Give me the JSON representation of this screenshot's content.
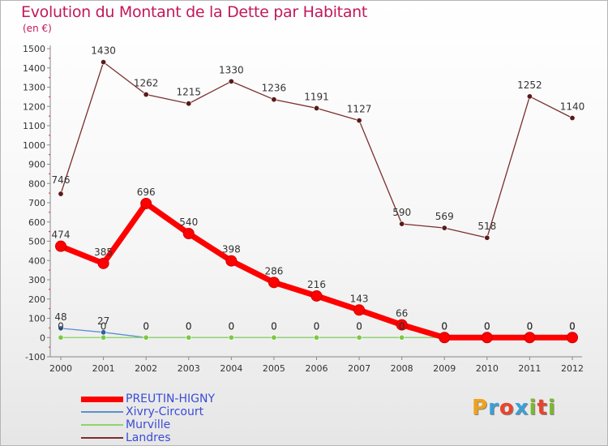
{
  "title": "Evolution du Montant de la Dette par Habitant",
  "subtitle": "(en €)",
  "logo": {
    "text": "Proxiti",
    "colors": [
      "#f0a21b",
      "#3aa0d8",
      "#e8442e",
      "#3aa0d8",
      "#7cb82f",
      "#e8442e",
      "#7cb82f"
    ]
  },
  "chart_data": {
    "type": "line",
    "title": "Evolution du Montant de la Dette par Habitant",
    "subtitle": "(en €)",
    "x": [
      "2000",
      "2001",
      "2002",
      "2003",
      "2004",
      "2005",
      "2006",
      "2007",
      "2008",
      "2009",
      "2010",
      "2011",
      "2012"
    ],
    "y_ticks": [
      "-100",
      "0",
      "100",
      "200",
      "300",
      "400",
      "500",
      "600",
      "700",
      "800",
      "900",
      "1000",
      "1100",
      "1200",
      "1300",
      "1400",
      "1500"
    ],
    "ylim": [
      -100,
      1500
    ],
    "grid": false,
    "legend_position": "bottom-left",
    "series": [
      {
        "name": "Landres",
        "color": "#7a2e2e",
        "marker": "#5a1a1a",
        "values": [
          746,
          1430,
          1262,
          1215,
          1330,
          1236,
          1191,
          1127,
          590,
          569,
          518,
          1252,
          1140
        ],
        "labels": [
          "746",
          "1430",
          "1262",
          "1215",
          "1330",
          "1236",
          "1191",
          "1127",
          "590",
          "569",
          "518",
          "1252",
          "1140"
        ]
      },
      {
        "name": "Xivry-Circourt",
        "color": "#5b8fd0",
        "marker": "#2f5fa8",
        "values": [
          48,
          27,
          0,
          0,
          0,
          0,
          0,
          0,
          0,
          0,
          0,
          0,
          0
        ],
        "labels": [
          "48",
          "27",
          "0",
          "0",
          "0",
          "0",
          "0",
          "0",
          "0",
          "0",
          "0",
          "0",
          "0"
        ]
      },
      {
        "name": "Murville",
        "color": "#8fd46a",
        "marker": "#7ac943",
        "values": [
          0,
          0,
          0,
          0,
          0,
          0,
          0,
          0,
          0,
          0,
          0,
          0,
          0
        ],
        "labels": [
          "0",
          "0",
          "0",
          "0",
          "0",
          "0",
          "0",
          "0",
          "0",
          "0",
          "0",
          "0",
          "0"
        ]
      },
      {
        "name": "PREUTIN-HIGNY",
        "color": "#ff0000",
        "marker": "#ff0000",
        "values": [
          474,
          385,
          696,
          540,
          398,
          286,
          216,
          143,
          66,
          0,
          0,
          0,
          0
        ],
        "labels": [
          "474",
          "385",
          "696",
          "540",
          "398",
          "286",
          "216",
          "143",
          "66",
          "0",
          "0",
          "0",
          "0"
        ]
      }
    ]
  },
  "legend": [
    {
      "name": "PREUTIN-HIGNY",
      "color": "#ff0000",
      "thickness": 7
    },
    {
      "name": "Xivry-Circourt",
      "color": "#5b8fd0",
      "thickness": 2
    },
    {
      "name": "Murville",
      "color": "#8fd46a",
      "thickness": 2
    },
    {
      "name": "Landres",
      "color": "#7a2e2e",
      "thickness": 2
    }
  ]
}
